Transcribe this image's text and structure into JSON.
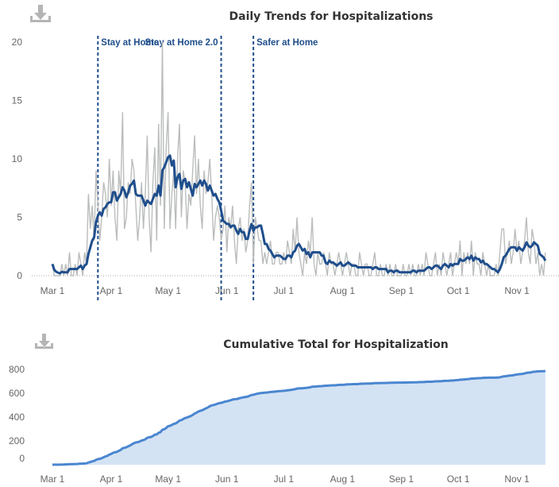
{
  "colors": {
    "raw": "#bbbdbd",
    "average": "#1f4e8c",
    "annotation": "#1f4e8c",
    "cumulative_line": "#4a86d0",
    "cumulative_fill": "#d4e3f4",
    "download_icon": "#b5b5b5"
  },
  "icons": [
    "download-icon",
    "download-icon"
  ],
  "chart_data": [
    {
      "type": "line",
      "title": "Daily Trends for Hospitalizations",
      "x_start": "2020-03-01",
      "x_ticks": [
        "Mar 1",
        "Apr 1",
        "May 1",
        "Jun 1",
        "Jul 1",
        "Aug 1",
        "Sep 1",
        "Oct 1",
        "Nov 1"
      ],
      "y_ticks": [
        0,
        5,
        10,
        15,
        20
      ],
      "ylim": [
        0,
        20
      ],
      "grid": false,
      "series": [
        {
          "role": "daily",
          "values": [
            1,
            0,
            0,
            0,
            0,
            1,
            0,
            1,
            0,
            2,
            0,
            0,
            1,
            0,
            2,
            1,
            0,
            2,
            1,
            7,
            4,
            6,
            3,
            9,
            6,
            3,
            5,
            8,
            7,
            5,
            10,
            6,
            9,
            5,
            3,
            9,
            7,
            14,
            4,
            5,
            8,
            7,
            10,
            9,
            6,
            3,
            5,
            8,
            4,
            7,
            12,
            5,
            2,
            8,
            11,
            3,
            13,
            6,
            20,
            4,
            11,
            14,
            4,
            7,
            9,
            4,
            10,
            13,
            5,
            9,
            8,
            4,
            7,
            6,
            9,
            12,
            7,
            10,
            6,
            4,
            9,
            7,
            8,
            10,
            7,
            3,
            5,
            6,
            5,
            3,
            4,
            6,
            2,
            5,
            4,
            6,
            3,
            1,
            4,
            5,
            3,
            4,
            2,
            3,
            6,
            8,
            1,
            5,
            4,
            3,
            3,
            1,
            2,
            1,
            2,
            3,
            1,
            1,
            2,
            2,
            1,
            1,
            2,
            1,
            3,
            2,
            1,
            4,
            2,
            5,
            2,
            1,
            0,
            2,
            1,
            3,
            2,
            5,
            1,
            0,
            2,
            1,
            1,
            2,
            1,
            0,
            2,
            1,
            1,
            0,
            1,
            2,
            1,
            0,
            1,
            2,
            1,
            0,
            1,
            1,
            0,
            0,
            2,
            1,
            0,
            1,
            1,
            0,
            0,
            1,
            2,
            0,
            0,
            1,
            0,
            0,
            1,
            0,
            1,
            0,
            0,
            1,
            0,
            0,
            0,
            1,
            0,
            0,
            1,
            0,
            1,
            0,
            0,
            1,
            0,
            1,
            0,
            2,
            1,
            0,
            0,
            1,
            2,
            0,
            1,
            0,
            2,
            1,
            0,
            1,
            2,
            0,
            1,
            2,
            1,
            3,
            0,
            2,
            1,
            2,
            1,
            3,
            0,
            2,
            1,
            1,
            0,
            2,
            1,
            0,
            1,
            0,
            0,
            0,
            1,
            0,
            2,
            4,
            4,
            1,
            2,
            3,
            1,
            2,
            4,
            2,
            3,
            1,
            2,
            3,
            5,
            2,
            1,
            4,
            3,
            1,
            2,
            0,
            1,
            0,
            2
          ]
        },
        {
          "role": "7-day average of daily"
        }
      ],
      "annotations": [
        {
          "label": "Stay at Home",
          "date": "2020-03-25",
          "anchor": "right-of-line"
        },
        {
          "label": "Stay at Home 2.0",
          "date": "2020-05-29",
          "anchor": "left-of-line"
        },
        {
          "label": "Safer at Home",
          "date": "2020-06-15",
          "anchor": "right-of-line"
        }
      ]
    },
    {
      "type": "area",
      "title": "Cumulative Total for Hospitalization",
      "x_ticks": [
        "Mar 1",
        "Apr 1",
        "May 1",
        "Jun 1",
        "Jul 1",
        "Aug 1",
        "Sep 1",
        "Oct 1",
        "Nov 1"
      ],
      "y_ticks": [
        0,
        200,
        400,
        600,
        800
      ],
      "ylim": [
        0,
        800
      ],
      "grid": false,
      "series": [
        {
          "role": "cumulative sum of daily"
        }
      ]
    }
  ]
}
